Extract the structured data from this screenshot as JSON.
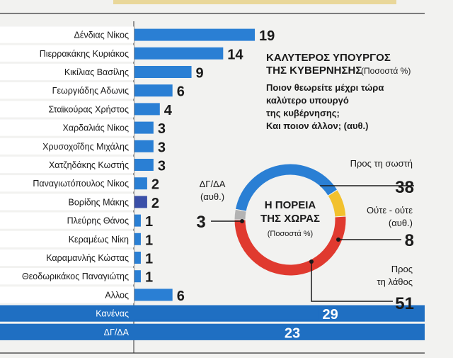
{
  "chart_data": [
    {
      "type": "bar",
      "orientation": "horizontal",
      "title": "ΚΑΛΥΤΕΡΟΣ ΥΠΟΥΡΓΟΣ ΤΗΣ ΚΥΒΕΡΝΗΣΗΣ",
      "title_line1": "ΚΑΛΥΤΕΡΟΣ ΥΠΟΥΡΓΟΣ",
      "title_line2": "ΤΗΣ ΚΥΒΕΡΝΗΣΗΣ",
      "unit_note": "(Ποσοστά %)",
      "question_lines": [
        "Ποιον θεωρείτε μέχρι τώρα",
        "καλύτερο υπουργό",
        "της κυβέρνησης;",
        "Και ποιον άλλον; (αυθ.)"
      ],
      "categories": [
        "Δένδιας Νίκος",
        "Πιερρακάκης Κυριάκος",
        "Κικίλιας Βασίλης",
        "Γεωργιάδης Αδωνις",
        "Σταϊκούρας Χρήστος",
        "Χαρδαλιάς Νίκος",
        "Χρυσοχοΐδης Μιχάλης",
        "Χατζηδάκης Κωστής",
        "Παναγιωτόπουλος Νίκος",
        "Βορίδης Μάκης",
        "Πλεύρης Θάνος",
        "Κεραμέως Νίκη",
        "Καραμανλής Κώστας",
        "Θεοδωρικάκος Παναγιώτης",
        "Αλλος",
        "Κανένας",
        "ΔΓ/ΔΑ"
      ],
      "values": [
        19,
        14,
        9,
        6,
        4,
        3,
        3,
        3,
        2,
        2,
        1,
        1,
        1,
        1,
        6,
        29,
        23
      ],
      "highlighted_rows": [
        15,
        16
      ],
      "colors": {
        "bar": "#2a7fd4",
        "highlight_row": "#1f6fc2",
        "dark_bar": "#3a4fa8",
        "row_fill": "#ffffff"
      }
    },
    {
      "type": "donut",
      "title": "Η ΠΟΡΕΙΑ ΤΗΣ ΧΩΡΑΣ",
      "title_line1": "Η ΠΟΡΕΙΑ",
      "title_line2": "ΤΗΣ ΧΩΡΑΣ",
      "unit_note": "(Ποσοστά %)",
      "slices": [
        {
          "label_lines": [
            "Προς τη σωστή"
          ],
          "value": 38,
          "color": "#2a7fd4"
        },
        {
          "label_lines": [
            "Ούτε - ούτε",
            "(αυθ.)"
          ],
          "value": 8,
          "color": "#f2c12e"
        },
        {
          "label_lines": [
            "Προς",
            "τη λάθος"
          ],
          "value": 51,
          "color": "#e03a2f"
        },
        {
          "label_lines": [
            "ΔΓ/ΔΑ",
            "(αυθ.)"
          ],
          "value": 3,
          "color": "#b3b3b3"
        }
      ]
    }
  ]
}
